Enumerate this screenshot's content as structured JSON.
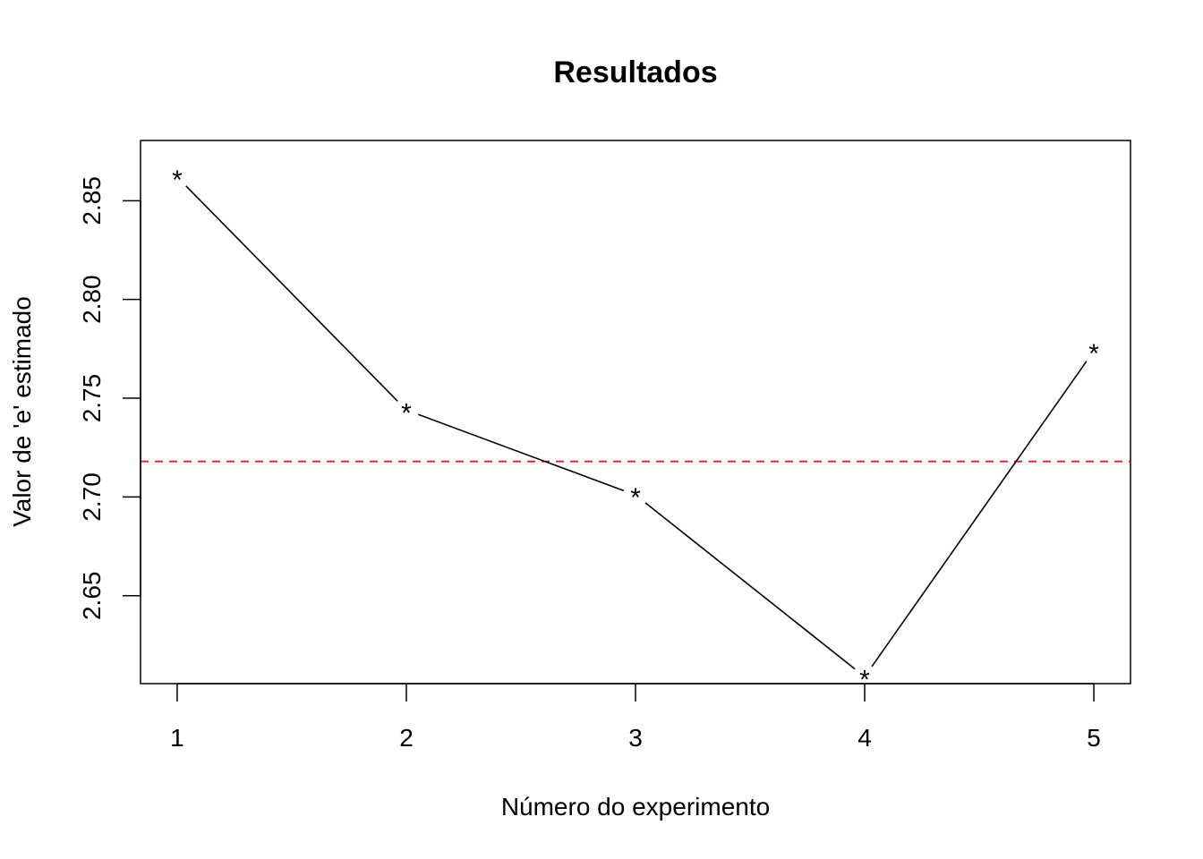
{
  "chart_data": {
    "type": "line",
    "title": "Resultados",
    "xlabel": "Número do experimento",
    "ylabel": "Valor de 'e' estimado",
    "x": [
      1,
      2,
      3,
      4,
      5
    ],
    "y": [
      2.862,
      2.744,
      2.701,
      2.609,
      2.774
    ],
    "xlim": [
      0.84,
      5.16
    ],
    "ylim": [
      2.6055,
      2.8805
    ],
    "x_ticks": [
      "1",
      "2",
      "3",
      "4",
      "5"
    ],
    "y_ticks": [
      "2.65",
      "2.70",
      "2.75",
      "2.80",
      "2.85"
    ],
    "point_symbol": "*",
    "series_color": "#000000",
    "reference_line": {
      "y": 2.718,
      "color": "#e41a1c",
      "style": "dashed"
    },
    "grid": false,
    "legend": "none"
  }
}
